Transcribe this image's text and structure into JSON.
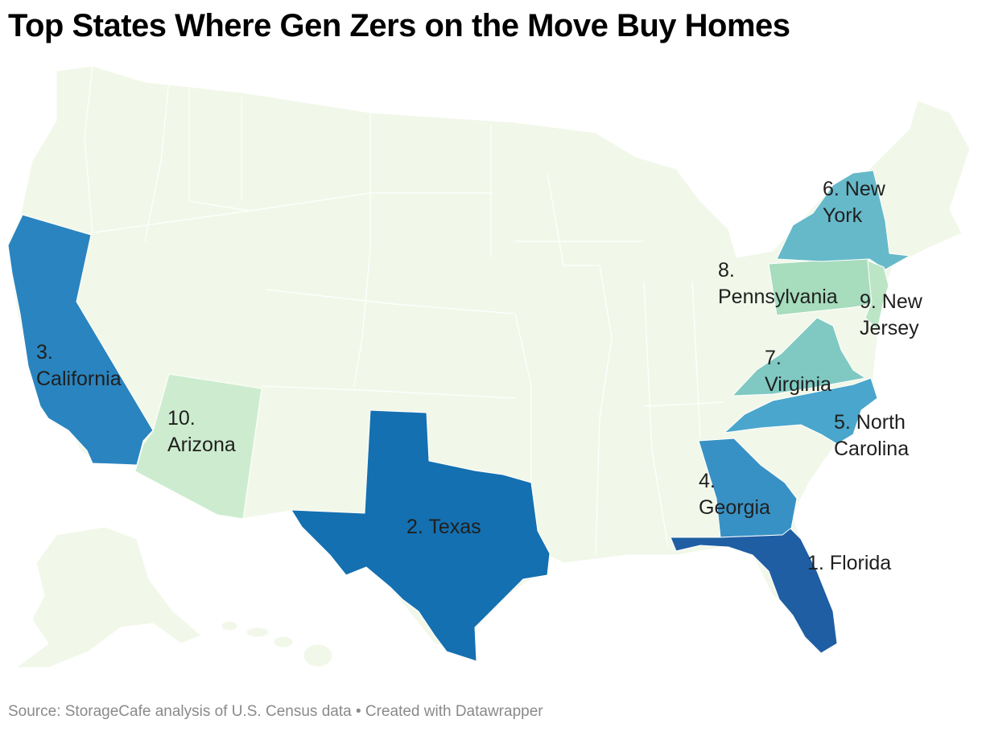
{
  "title": "Top States Where Gen Zers on the Move Buy Homes",
  "colors": {
    "background": "#f1f8e9",
    "border": "#ffffff",
    "Florida": "#1f5ea3",
    "Texas": "#1470b0",
    "California": "#2a84bf",
    "Georgia": "#3891c4",
    "North Carolina": "#4aa6cc",
    "New York": "#66b9c9",
    "Virginia": "#7fc9c2",
    "Pennsylvania": "#a7dcbd",
    "New Jersey": "#bce5c6",
    "Arizona": "#cdeccf"
  },
  "ranked_states": [
    {
      "rank": 1,
      "state": "Florida",
      "label_lines": [
        "1. Florida"
      ]
    },
    {
      "rank": 2,
      "state": "Texas",
      "label_lines": [
        "2. Texas"
      ]
    },
    {
      "rank": 3,
      "state": "California",
      "label_lines": [
        "3.",
        "California"
      ]
    },
    {
      "rank": 4,
      "state": "Georgia",
      "label_lines": [
        "4.",
        "Georgia"
      ]
    },
    {
      "rank": 5,
      "state": "North Carolina",
      "label_lines": [
        "5. North",
        "Carolina"
      ]
    },
    {
      "rank": 6,
      "state": "New York",
      "label_lines": [
        "6. New",
        "York"
      ]
    },
    {
      "rank": 7,
      "state": "Virginia",
      "label_lines": [
        "7.",
        "Virginia"
      ]
    },
    {
      "rank": 8,
      "state": "Pennsylvania",
      "label_lines": [
        "8.",
        "Pennsylvania"
      ]
    },
    {
      "rank": 9,
      "state": "New Jersey",
      "label_lines": [
        "9. New",
        "Jersey"
      ]
    },
    {
      "rank": 10,
      "state": "Arizona",
      "label_lines": [
        "10.",
        "Arizona"
      ]
    }
  ],
  "source": "Source: StorageCafe analysis of U.S. Census data • Created with Datawrapper"
}
